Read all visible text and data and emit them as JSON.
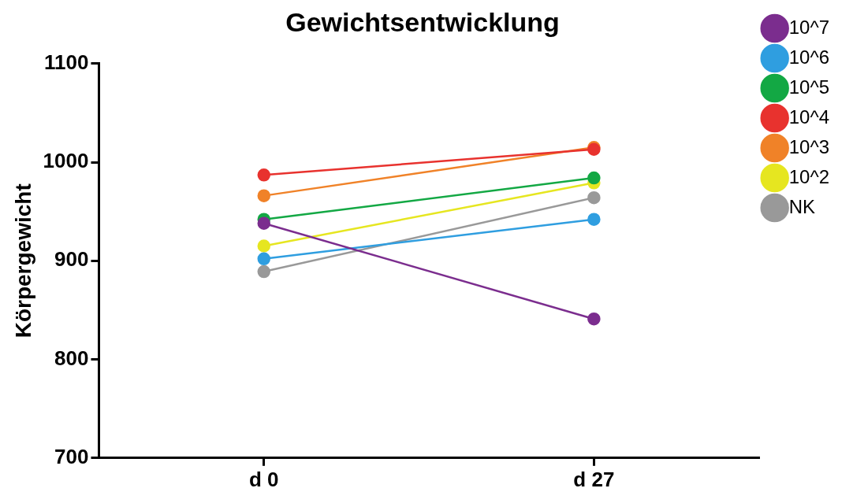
{
  "chart_data": {
    "type": "line",
    "title": "Gewichtsentwicklung",
    "ylabel": "Körpergewicht",
    "categories": [
      "d 0",
      "d 27"
    ],
    "ylim": [
      700,
      1100
    ],
    "yticks": [
      700,
      800,
      900,
      1000,
      1100
    ],
    "grid": false,
    "legend": "right",
    "marker": "circle",
    "line_style": "solid",
    "series": [
      {
        "name": "10^7",
        "color": "#7b2d8e",
        "values": [
          938,
          841
        ]
      },
      {
        "name": "10^6",
        "color": "#2f9ee0",
        "values": [
          902,
          942
        ]
      },
      {
        "name": "10^5",
        "color": "#13a844",
        "values": [
          942,
          984
        ]
      },
      {
        "name": "10^4",
        "color": "#e8322e",
        "values": [
          987,
          1013
        ]
      },
      {
        "name": "10^3",
        "color": "#f08228",
        "values": [
          966,
          1015
        ]
      },
      {
        "name": "10^2",
        "color": "#e6e620",
        "values": [
          915,
          979
        ]
      },
      {
        "name": "NK",
        "color": "#999999",
        "values": [
          889,
          964
        ]
      }
    ]
  }
}
